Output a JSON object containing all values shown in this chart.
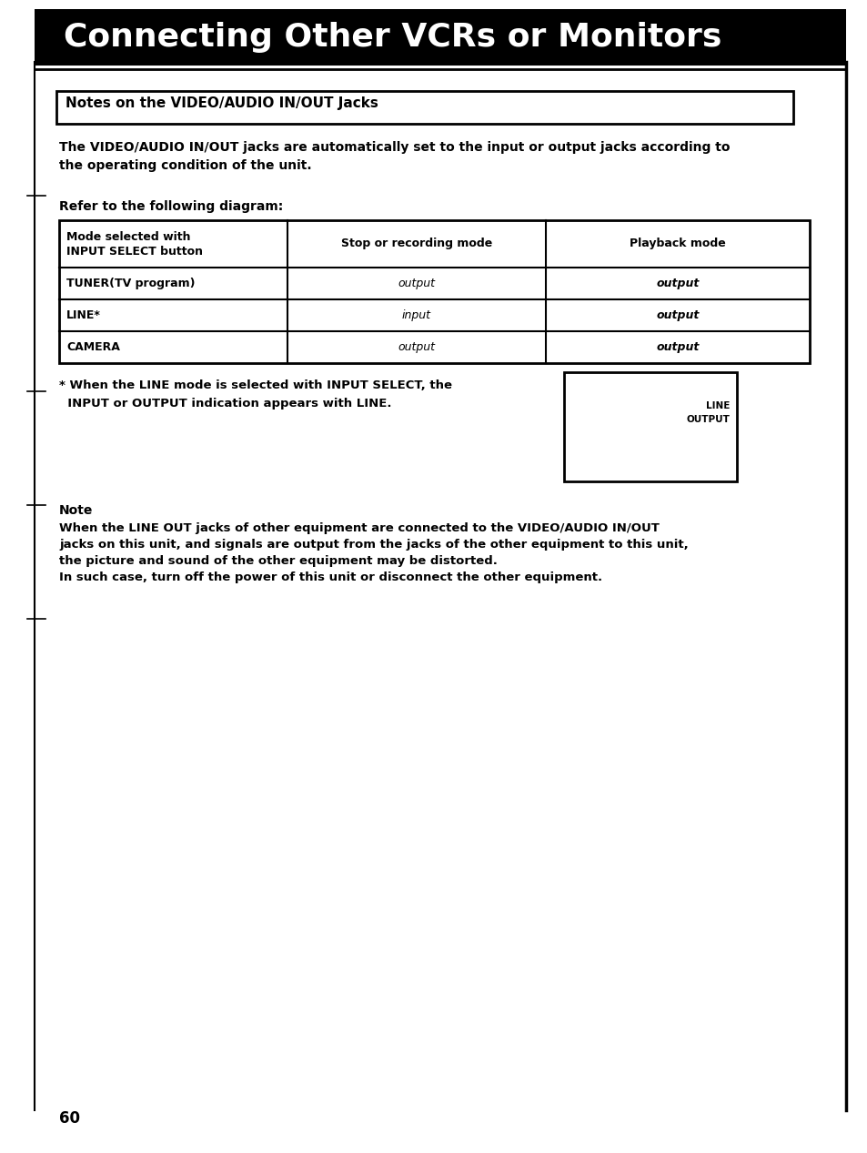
{
  "bg_color": "#ffffff",
  "header_text": "Connecting Other VCRs or Monitors",
  "notes_box_text": "Notes on the VIDEO/AUDIO IN/OUT Jacks",
  "para1_line1": "The VIDEO/AUDIO IN/OUT jacks are automatically set to the input or output jacks according to",
  "para1_line2": "the operating condition of the unit.",
  "refer_text": "Refer to the following diagram:",
  "table_headers": [
    "Mode selected with\nINPUT SELECT button",
    "Stop or recording mode",
    "Playback mode"
  ],
  "table_rows": [
    [
      "TUNER(TV program)",
      "output",
      "output"
    ],
    [
      "LINE*",
      "input",
      "output"
    ],
    [
      "CAMERA",
      "output",
      "output"
    ]
  ],
  "footnote1": "* When the LINE mode is selected with INPUT SELECT, the",
  "footnote2": "  INPUT or OUTPUT indication appears with LINE.",
  "lcd_lines": [
    "LINE",
    "OUTPUT"
  ],
  "note_title": "Note",
  "note_body_line1": "When the LINE OUT jacks of other equipment are connected to the VIDEO/AUDIO IN/OUT",
  "note_body_line2": "jacks on this unit, and signals are output from the jacks of the other equipment to this unit,",
  "note_body_line3": "the picture and sound of the other equipment may be distorted.",
  "note_body_line4": "In such case, turn off the power of this unit or disconnect the other equipment.",
  "page_number": "60"
}
